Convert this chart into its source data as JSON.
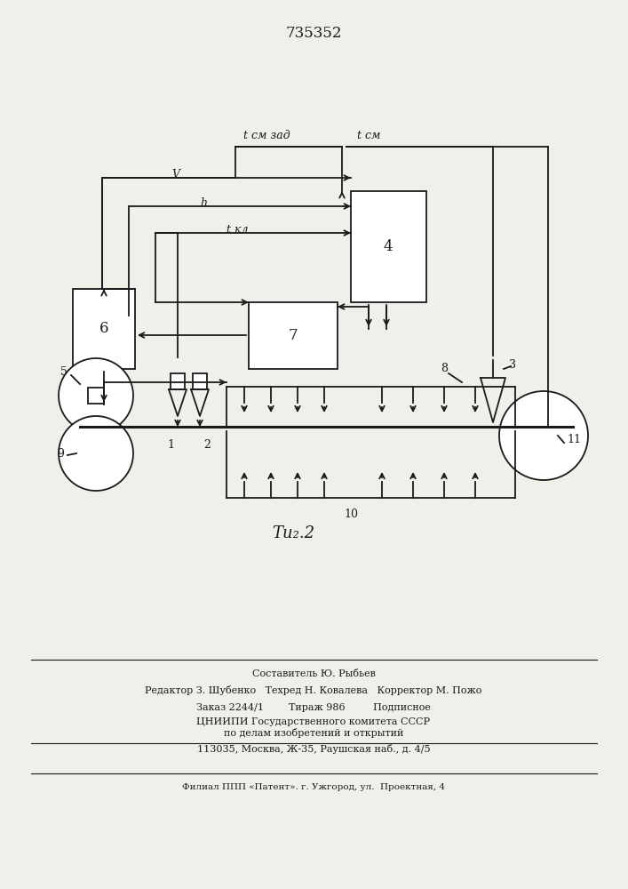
{
  "title": "735352",
  "fig_caption": "Τи₂.2",
  "bg_color": "#f0efea",
  "lc": "#1a1a1a",
  "lw": 1.3,
  "label_t_cm_zad": "t см зад",
  "label_t_cm": "t см",
  "label_v": "V",
  "label_h": "h",
  "label_t_kl": "t кл",
  "footer_line1": "Составитель Ю. Рыбьев",
  "footer_line2": "Редактор З. Шубенко   Техред Н. Ковалева   Корректор М. Пожо",
  "footer_line3": "Заказ 2244/1        Тираж 986         Подписное",
  "footer_line4": "ЦНИИПИ Государственного комитета СССР",
  "footer_line5": "по делам изобретений и открытий",
  "footer_line6": "113035, Москва, Ж-35, Раушская наб., д. 4/5",
  "footer_line7": "Филиал ППП «Патент». г. Ужгород, ул.  Проектная, 4"
}
